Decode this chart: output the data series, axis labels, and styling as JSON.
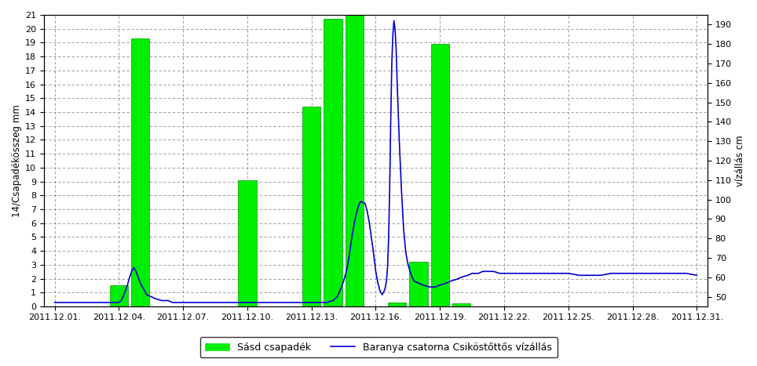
{
  "ylabel_left": "14/Csapadékösszeg mm",
  "ylabel_right": "vízállás cm",
  "ylim_left": [
    0,
    21
  ],
  "ylim_right": [
    45,
    195
  ],
  "yticks_left": [
    0,
    1,
    2,
    3,
    4,
    5,
    6,
    7,
    8,
    9,
    10,
    11,
    12,
    13,
    14,
    15,
    16,
    17,
    18,
    19,
    20,
    21
  ],
  "yticks_right": [
    50,
    60,
    70,
    80,
    90,
    100,
    110,
    120,
    130,
    140,
    150,
    160,
    170,
    180,
    190
  ],
  "bar_color": "#00ee00",
  "line_color": "#0000cc",
  "bar_edge_color": "#009900",
  "background_color": "#ffffff",
  "legend_bar_label": "Sásd csapadék",
  "legend_line_label": "Baranya csatorna Csiköstőttős vízállás",
  "bar_values": [
    0.0,
    0.0,
    0.0,
    1.5,
    19.3,
    0.0,
    0.0,
    0.0,
    0.0,
    9.1,
    0.0,
    0.0,
    14.4,
    20.7,
    21.0,
    0.0,
    0.3,
    3.2,
    18.9,
    0.2,
    0.0,
    0.0,
    0.0,
    0.0,
    0.0,
    0.0,
    0.0,
    0.0,
    0.0,
    0.0,
    0.0
  ],
  "xtick_labels": [
    "2011.12.01.",
    "2011.12.04.",
    "2011.12.07.",
    "2011.12.10.",
    "2011.12.13.",
    "2011.12.16.",
    "2011.12.19.",
    "2011.12.22.",
    "2011.12.25.",
    "2011.12.28.",
    "2011.12.31."
  ],
  "xtick_offsets": [
    0,
    3,
    6,
    9,
    12,
    15,
    18,
    21,
    24,
    27,
    30
  ],
  "line_x": [
    0.0,
    0.2,
    0.5,
    0.8,
    1.0,
    1.3,
    1.5,
    1.8,
    2.0,
    2.3,
    2.5,
    2.8,
    3.0,
    3.1,
    3.2,
    3.3,
    3.4,
    3.5,
    3.6,
    3.7,
    3.8,
    3.9,
    4.0,
    4.1,
    4.2,
    4.3,
    4.5,
    4.7,
    5.0,
    5.3,
    5.5,
    5.7,
    6.0,
    6.3,
    6.5,
    6.8,
    7.0,
    7.5,
    8.0,
    8.5,
    9.0,
    9.5,
    10.0,
    10.5,
    11.0,
    11.5,
    12.0,
    12.3,
    12.5,
    12.7,
    13.0,
    13.2,
    13.4,
    13.5,
    13.6,
    13.7,
    13.8,
    13.9,
    14.0,
    14.1,
    14.2,
    14.3,
    14.5,
    14.6,
    14.7,
    14.8,
    14.9,
    15.0,
    15.05,
    15.1,
    15.15,
    15.2,
    15.25,
    15.3,
    15.35,
    15.4,
    15.45,
    15.5,
    15.55,
    15.6,
    15.65,
    15.7,
    15.75,
    15.8,
    15.85,
    15.9,
    15.95,
    16.0,
    16.1,
    16.2,
    16.3,
    16.4,
    16.5,
    16.6,
    16.7,
    16.8,
    17.0,
    17.2,
    17.5,
    17.8,
    18.0,
    18.3,
    18.5,
    18.8,
    19.0,
    19.3,
    19.5,
    19.8,
    20.0,
    20.3,
    20.5,
    20.8,
    21.0,
    21.5,
    22.0,
    22.5,
    23.0,
    23.5,
    24.0,
    24.5,
    25.0,
    25.5,
    26.0,
    26.5,
    27.0,
    27.5,
    28.0,
    28.5,
    29.0,
    29.5,
    30.0
  ],
  "line_y": [
    47,
    47,
    47,
    47,
    47,
    47,
    47,
    47,
    47,
    47,
    47,
    47,
    47,
    48,
    50,
    53,
    56,
    60,
    63,
    65,
    63,
    60,
    57,
    55,
    53,
    51,
    50,
    49,
    48,
    48,
    47,
    47,
    47,
    47,
    47,
    47,
    47,
    47,
    47,
    47,
    47,
    47,
    47,
    47,
    47,
    47,
    47,
    47,
    47,
    47,
    48,
    50,
    55,
    58,
    62,
    67,
    74,
    82,
    88,
    93,
    97,
    99,
    98,
    94,
    88,
    80,
    72,
    63,
    60,
    57,
    55,
    53,
    52,
    51,
    52,
    53,
    55,
    58,
    65,
    80,
    105,
    140,
    170,
    185,
    192,
    188,
    178,
    160,
    130,
    105,
    85,
    73,
    67,
    63,
    60,
    58,
    57,
    56,
    55,
    55,
    56,
    57,
    58,
    59,
    60,
    61,
    62,
    62,
    63,
    63,
    63,
    62,
    62,
    62,
    62,
    62,
    62,
    62,
    62,
    61,
    61,
    61,
    62,
    62,
    62,
    62,
    62,
    62,
    62,
    62,
    61
  ]
}
